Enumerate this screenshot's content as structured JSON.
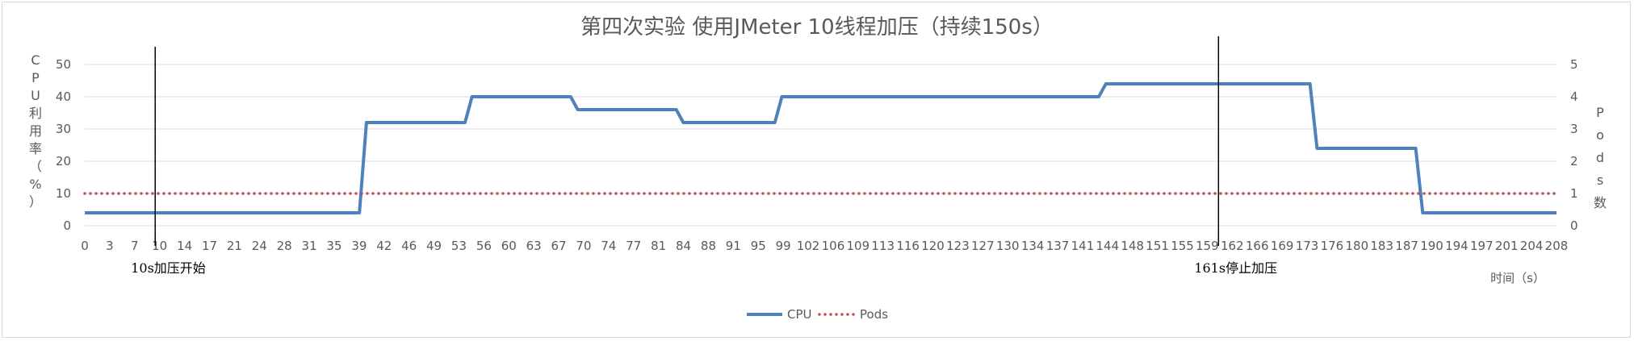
{
  "chart_data": {
    "type": "line",
    "title": "第四次实验 使用JMeter 10线程加压（持续150s）",
    "xlabel": "时间（s）",
    "ylabel": "CPU利用率（%）",
    "y2label": "Pods数",
    "ylim": [
      0,
      50
    ],
    "y_ticks": [
      0,
      10,
      20,
      30,
      40,
      50
    ],
    "y2lim": [
      0,
      5
    ],
    "y2_ticks": [
      0,
      1,
      2,
      3,
      4,
      5
    ],
    "x_tick_labels": [
      "0",
      "3",
      "7",
      "10",
      "14",
      "17",
      "21",
      "24",
      "28",
      "31",
      "35",
      "39",
      "42",
      "46",
      "49",
      "53",
      "56",
      "60",
      "63",
      "67",
      "70",
      "74",
      "77",
      "81",
      "84",
      "88",
      "91",
      "95",
      "99",
      "102",
      "106",
      "109",
      "113",
      "116",
      "120",
      "123",
      "127",
      "130",
      "134",
      "137",
      "141",
      "144",
      "148",
      "151",
      "155",
      "159",
      "162",
      "166",
      "169",
      "173",
      "176",
      "180",
      "183",
      "187",
      "190",
      "194",
      "197",
      "201",
      "204",
      "208"
    ],
    "series": [
      {
        "name": "CPU",
        "axis": "left",
        "color": "#4f81bd",
        "style": "solid",
        "points": [
          [
            0,
            4
          ],
          [
            39,
            4
          ],
          [
            40,
            32
          ],
          [
            54,
            32
          ],
          [
            55,
            40
          ],
          [
            69,
            40
          ],
          [
            70,
            36
          ],
          [
            84,
            36
          ],
          [
            85,
            32
          ],
          [
            98,
            32
          ],
          [
            99,
            40
          ],
          [
            144,
            40
          ],
          [
            145,
            44
          ],
          [
            174,
            44
          ],
          [
            175,
            24
          ],
          [
            189,
            24
          ],
          [
            190,
            4
          ],
          [
            209,
            4
          ]
        ]
      },
      {
        "name": "Pods",
        "axis": "right",
        "color": "#c0504d",
        "style": "dotted",
        "points": [
          [
            0,
            1
          ],
          [
            209,
            1
          ]
        ]
      }
    ],
    "annotations": [
      {
        "text": "10s加压开始",
        "x": 10
      },
      {
        "text": "161s停止加压",
        "x": 161
      }
    ],
    "legend": "bottom",
    "grid": "horizontal"
  }
}
